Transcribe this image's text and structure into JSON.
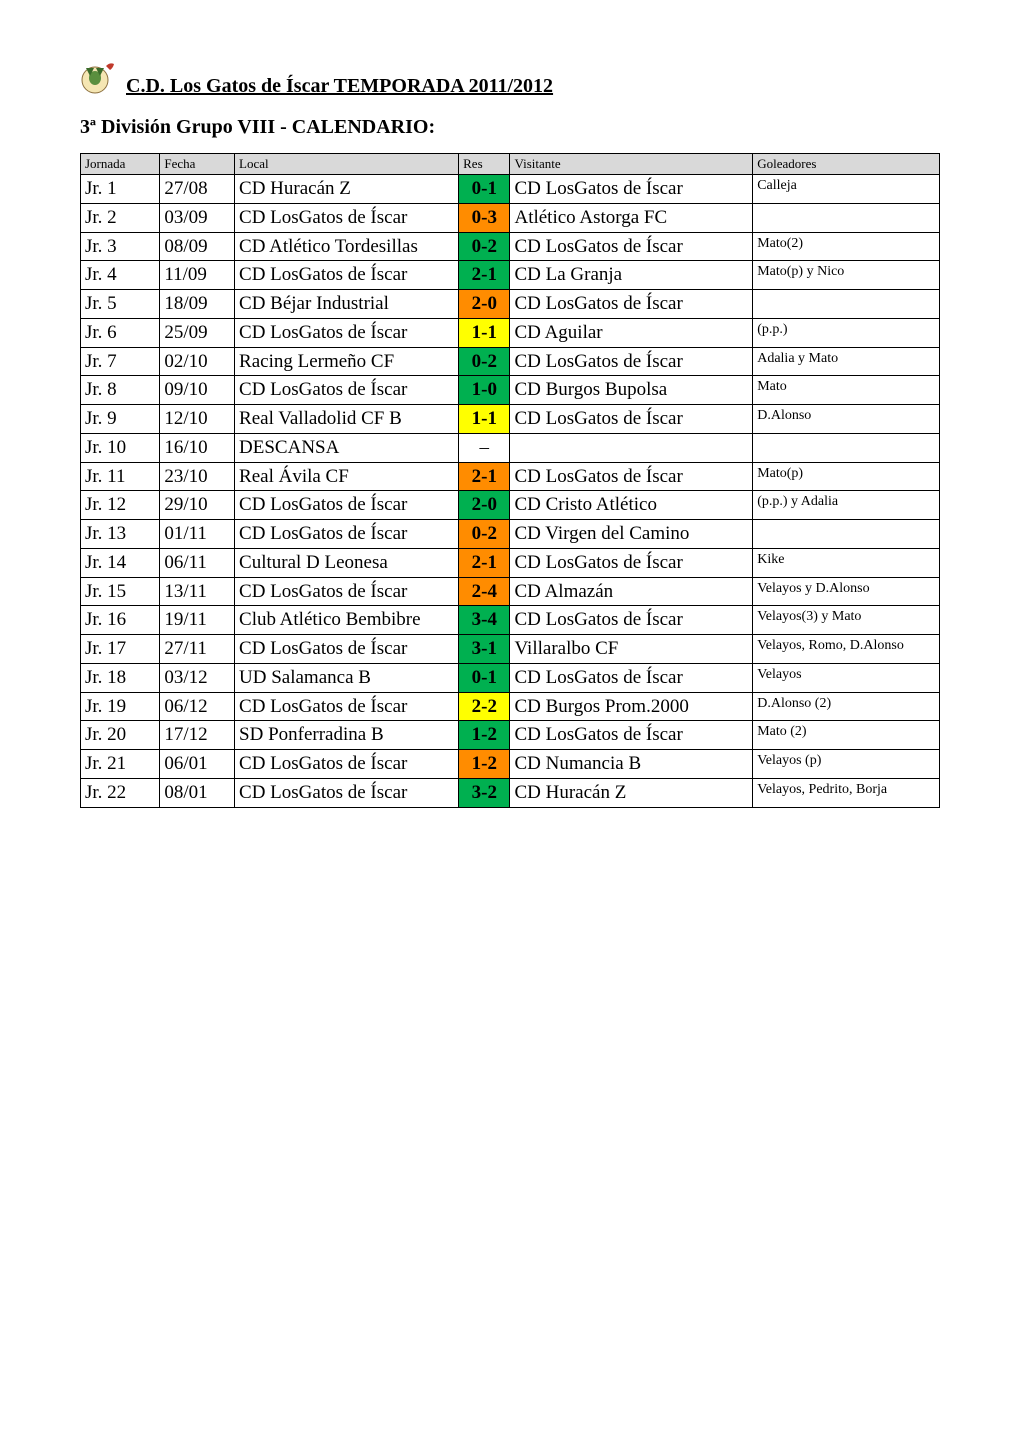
{
  "title": "C.D. Los Gatos de Íscar TEMPORADA 2011/2012",
  "subtitle": "3ª División Grupo VIII - CALENDARIO:",
  "colors": {
    "header_bg": "#d9d9d9",
    "green": "#00b050",
    "orange": "#ff8c00",
    "yellow": "#ffff00",
    "border": "#000000"
  },
  "headers": {
    "jornada": "Jornada",
    "fecha": "Fecha",
    "local": "Local",
    "res": "Res",
    "visitante": "Visitante",
    "goleadores": "Goleadores"
  },
  "rows": [
    {
      "jornada": "Jr. 1",
      "fecha": "27/08",
      "local": "CD Huracán Z",
      "res": "0-1",
      "res_color": "green",
      "visitante": "CD LosGatos de Íscar",
      "goleadores": "Calleja"
    },
    {
      "jornada": "Jr. 2",
      "fecha": "03/09",
      "local": "CD LosGatos de Íscar",
      "res": "0-3",
      "res_color": "orange",
      "visitante": "Atlético Astorga FC",
      "goleadores": ""
    },
    {
      "jornada": "Jr. 3",
      "fecha": "08/09",
      "local": "CD Atlético Tordesillas",
      "res": "0-2",
      "res_color": "green",
      "visitante": "CD LosGatos de Íscar",
      "goleadores": "Mato(2)"
    },
    {
      "jornada": "Jr. 4",
      "fecha": "11/09",
      "local": "CD LosGatos de Íscar",
      "res": "2-1",
      "res_color": "green",
      "visitante": "CD La Granja",
      "goleadores": "Mato(p) y Nico"
    },
    {
      "jornada": "Jr. 5",
      "fecha": "18/09",
      "local": "CD Béjar Industrial",
      "res": "2-0",
      "res_color": "orange",
      "visitante": "CD LosGatos de Íscar",
      "goleadores": ""
    },
    {
      "jornada": "Jr. 6",
      "fecha": "25/09",
      "local": "CD LosGatos de Íscar",
      "res": "1-1",
      "res_color": "yellow",
      "visitante": "CD Aguilar",
      "goleadores": "(p.p.)"
    },
    {
      "jornada": "Jr. 7",
      "fecha": "02/10",
      "local": "Racing Lermeño CF",
      "res": "0-2",
      "res_color": "green",
      "visitante": "CD LosGatos de Íscar",
      "goleadores": "Adalia y Mato"
    },
    {
      "jornada": "Jr. 8",
      "fecha": "09/10",
      "local": "CD LosGatos de Íscar",
      "res": "1-0",
      "res_color": "green",
      "visitante": "CD Burgos Bupolsa",
      "goleadores": "Mato"
    },
    {
      "jornada": "Jr. 9",
      "fecha": "12/10",
      "local": "Real Valladolid CF B",
      "res": "1-1",
      "res_color": "yellow",
      "visitante": "CD LosGatos de Íscar",
      "goleadores": "D.Alonso"
    },
    {
      "jornada": "Jr. 10",
      "fecha": "16/10",
      "local": "DESCANSA",
      "res": "–",
      "res_color": "none",
      "visitante": "",
      "goleadores": ""
    },
    {
      "jornada": "Jr. 11",
      "fecha": "23/10",
      "local": "Real Ávila CF",
      "res": "2-1",
      "res_color": "orange",
      "visitante": "CD LosGatos de Íscar",
      "goleadores": "Mato(p)"
    },
    {
      "jornada": "Jr. 12",
      "fecha": "29/10",
      "local": "CD LosGatos de Íscar",
      "res": "2-0",
      "res_color": "green",
      "visitante": "CD Cristo Atlético",
      "goleadores": "(p.p.) y Adalia"
    },
    {
      "jornada": "Jr. 13",
      "fecha": "01/11",
      "local": "CD LosGatos de Íscar",
      "res": "0-2",
      "res_color": "orange",
      "visitante": "CD  Virgen del Camino",
      "goleadores": ""
    },
    {
      "jornada": "Jr. 14",
      "fecha": "06/11",
      "local": "Cultural D Leonesa",
      "res": "2-1",
      "res_color": "orange",
      "visitante": "CD LosGatos de Íscar",
      "goleadores": "Kike"
    },
    {
      "jornada": "Jr. 15",
      "fecha": "13/11",
      "local": "CD LosGatos de Íscar",
      "res": "2-4",
      "res_color": "orange",
      "visitante": "CD Almazán",
      "goleadores": "Velayos y D.Alonso"
    },
    {
      "jornada": "Jr. 16",
      "fecha": "19/11",
      "local": "Club Atlético Bembibre",
      "res": "3-4",
      "res_color": "green",
      "visitante": "CD LosGatos de Íscar",
      "goleadores": "Velayos(3) y Mato"
    },
    {
      "jornada": "Jr. 17",
      "fecha": "27/11",
      "local": "CD LosGatos de Íscar",
      "res": "3-1",
      "res_color": "green",
      "visitante": "Villaralbo CF",
      "goleadores": "Velayos, Romo, D.Alonso"
    },
    {
      "jornada": "Jr. 18",
      "fecha": "03/12",
      "local": "UD Salamanca B",
      "res": "0-1",
      "res_color": "green",
      "visitante": "CD LosGatos de Íscar",
      "goleadores": "Velayos"
    },
    {
      "jornada": "Jr. 19",
      "fecha": "06/12",
      "local": "CD LosGatos de Íscar",
      "res": "2-2",
      "res_color": "yellow",
      "visitante": "CD Burgos Prom.2000",
      "goleadores": "D.Alonso (2)"
    },
    {
      "jornada": "Jr. 20",
      "fecha": "17/12",
      "local": "SD Ponferradina B",
      "res": "1-2",
      "res_color": "green",
      "visitante": "CD LosGatos de Íscar",
      "goleadores": "Mato (2)"
    },
    {
      "jornada": "Jr. 21",
      "fecha": "06/01",
      "local": "CD LosGatos de Íscar",
      "res": "1-2",
      "res_color": "orange",
      "visitante": "CD Numancia B",
      "goleadores": "Velayos (p)"
    },
    {
      "jornada": "Jr. 22",
      "fecha": "08/01",
      "local": "CD LosGatos de Íscar",
      "res": "3-2",
      "res_color": "green",
      "visitante": "CD Huracán Z",
      "goleadores": " Velayos, Pedrito, Borja"
    }
  ]
}
